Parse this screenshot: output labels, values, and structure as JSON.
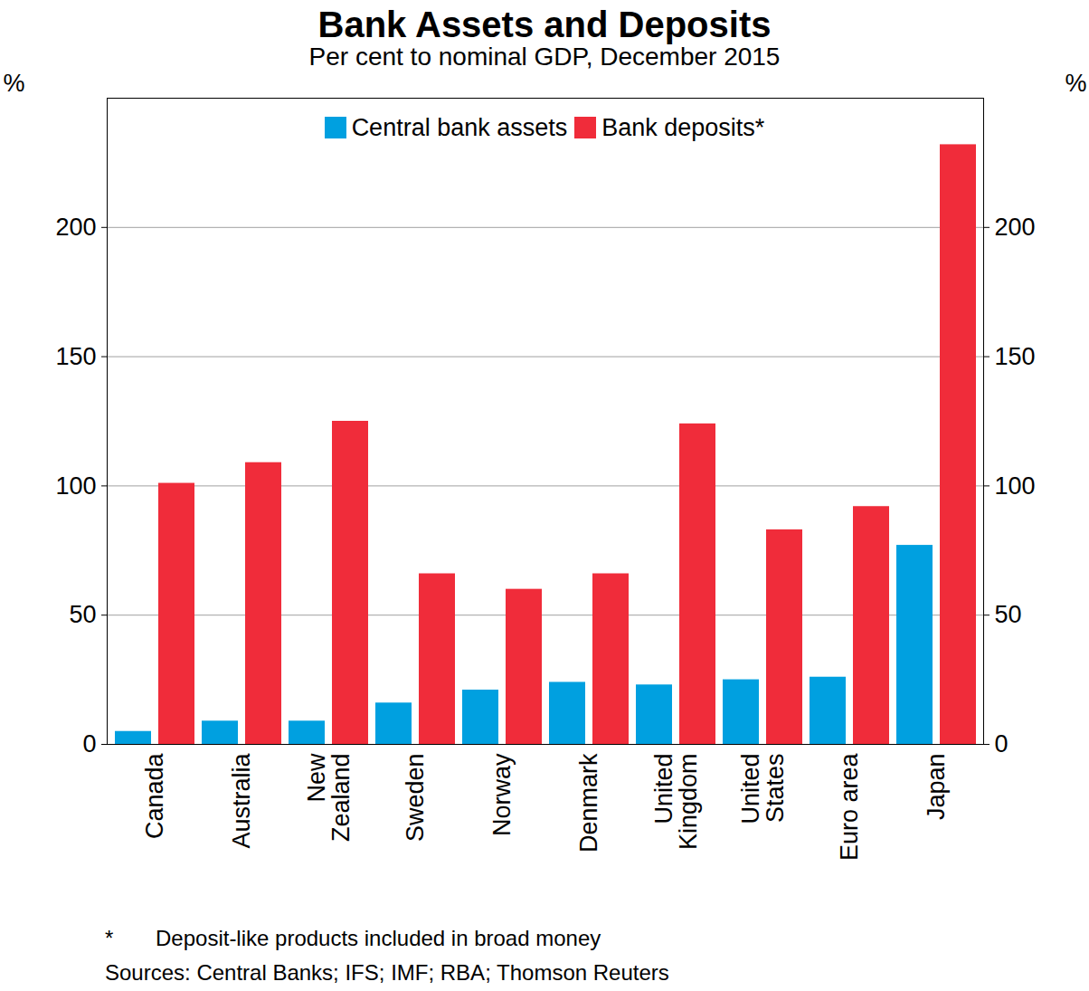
{
  "chart_data": {
    "type": "bar",
    "title": "Bank Assets and Deposits",
    "subtitle": "Per cent to nominal GDP, December 2015",
    "categories": [
      "Canada",
      "Australia",
      "New\nZealand",
      "Sweden",
      "Norway",
      "Denmark",
      "United\nKingdom",
      "United\nStates",
      "Euro area",
      "Japan"
    ],
    "series": [
      {
        "name": "Central bank assets",
        "color": "#00a0e0",
        "values": [
          5,
          9,
          9,
          16,
          21,
          24,
          23,
          25,
          26,
          77
        ]
      },
      {
        "name": "Bank deposits*",
        "color": "#f02c3a",
        "values": [
          101,
          109,
          125,
          66,
          60,
          66,
          124,
          83,
          92,
          232
        ]
      }
    ],
    "y_label": "%",
    "ylim": [
      0,
      250
    ],
    "yticks": [
      0,
      50,
      100,
      150,
      200
    ],
    "grid": true,
    "legend": "top",
    "footnote_marker": "*",
    "footnote": "Deposit-like products included in broad money",
    "sources": "Sources:  Central Banks; IFS; IMF; RBA; Thomson Reuters"
  }
}
